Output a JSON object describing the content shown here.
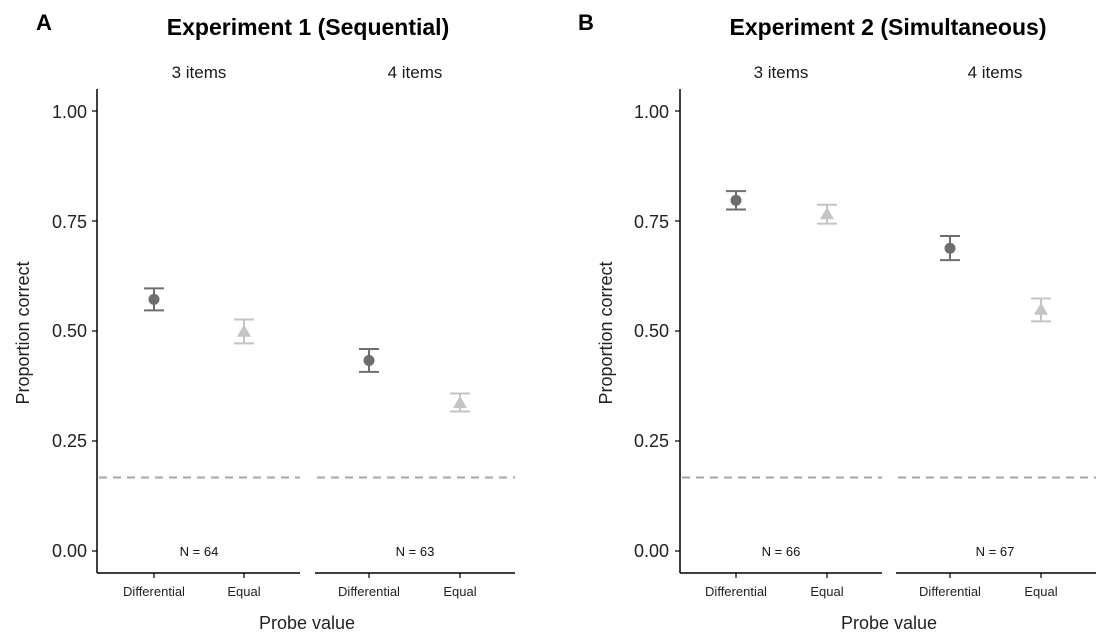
{
  "chart_data": [
    {
      "type": "scatter",
      "panel_label": "A",
      "title": "Experiment 1 (Sequential)",
      "ylabel": "Proportion correct",
      "xlabel": "Probe value",
      "ylim": [
        0,
        1.05
      ],
      "yticks": [
        "0.00",
        "0.25",
        "0.50",
        "0.75",
        "1.00"
      ],
      "ytick_values": [
        0,
        0.25,
        0.5,
        0.75,
        1.0
      ],
      "chance_level": 0.167,
      "grid": false,
      "categories": [
        "Differential",
        "Equal"
      ],
      "facets": [
        {
          "label": "3 items",
          "n_label": "N = 64",
          "points": [
            {
              "category": "Differential",
              "mean": 0.572,
              "lower": 0.547,
              "upper": 0.597,
              "shape": "circle",
              "color": "#6e6e6e"
            },
            {
              "category": "Equal",
              "mean": 0.499,
              "lower": 0.472,
              "upper": 0.526,
              "shape": "triangle",
              "color": "#c4c4c4"
            }
          ]
        },
        {
          "label": "4 items",
          "n_label": "N = 63",
          "points": [
            {
              "category": "Differential",
              "mean": 0.433,
              "lower": 0.407,
              "upper": 0.459,
              "shape": "circle",
              "color": "#6e6e6e"
            },
            {
              "category": "Equal",
              "mean": 0.337,
              "lower": 0.317,
              "upper": 0.358,
              "shape": "triangle",
              "color": "#c4c4c4"
            }
          ]
        }
      ]
    },
    {
      "type": "scatter",
      "panel_label": "B",
      "title": "Experiment 2 (Simultaneous)",
      "ylabel": "Proportion correct",
      "xlabel": "Probe value",
      "ylim": [
        0,
        1.05
      ],
      "yticks": [
        "0.00",
        "0.25",
        "0.50",
        "0.75",
        "1.00"
      ],
      "ytick_values": [
        0,
        0.25,
        0.5,
        0.75,
        1.0
      ],
      "chance_level": 0.167,
      "grid": false,
      "categories": [
        "Differential",
        "Equal"
      ],
      "facets": [
        {
          "label": "3 items",
          "n_label": "N = 66",
          "points": [
            {
              "category": "Differential",
              "mean": 0.797,
              "lower": 0.776,
              "upper": 0.818,
              "shape": "circle",
              "color": "#6e6e6e"
            },
            {
              "category": "Equal",
              "mean": 0.766,
              "lower": 0.744,
              "upper": 0.787,
              "shape": "triangle",
              "color": "#c4c4c4"
            }
          ]
        },
        {
          "label": "4 items",
          "n_label": "N = 67",
          "points": [
            {
              "category": "Differential",
              "mean": 0.688,
              "lower": 0.661,
              "upper": 0.716,
              "shape": "circle",
              "color": "#6e6e6e"
            },
            {
              "category": "Equal",
              "mean": 0.549,
              "lower": 0.522,
              "upper": 0.574,
              "shape": "triangle",
              "color": "#c4c4c4"
            }
          ]
        }
      ]
    }
  ]
}
